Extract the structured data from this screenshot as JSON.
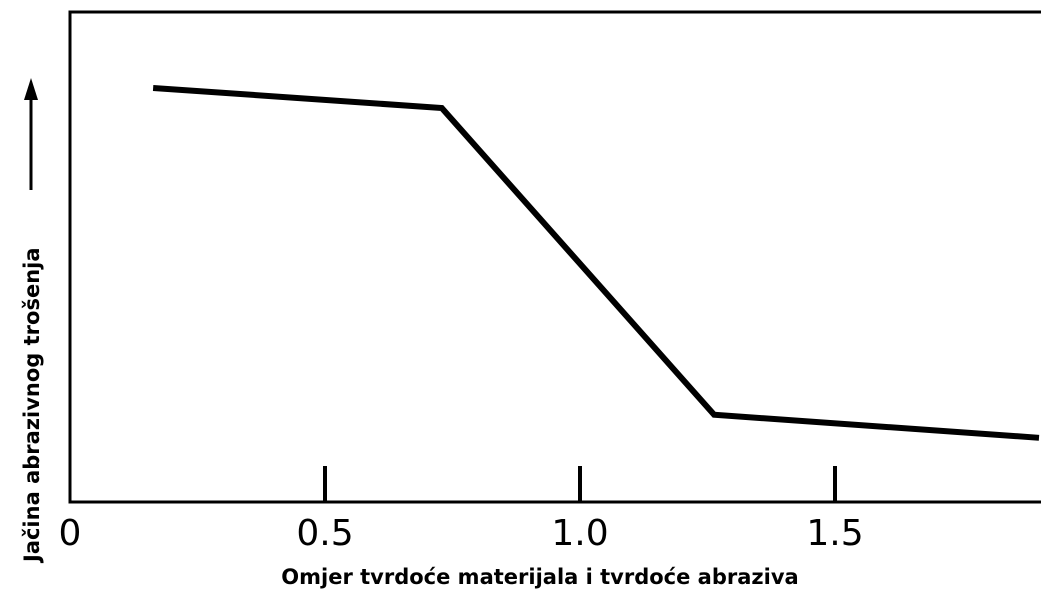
{
  "chart_data": {
    "type": "line",
    "x_label": "Omjer tvrdoće materijala i tvrdoće abraziva",
    "y_label": "Jačina abrazivnog trošenja",
    "x": [
      0.163,
      0.729,
      1.263,
      1.9
    ],
    "values": [
      84.5,
      80.4,
      17.8,
      13.1
    ],
    "color": "#000000",
    "xlim": [
      0,
      1.9
    ],
    "ylim": [
      0,
      100
    ],
    "xticks": [
      0,
      0.5,
      {
        "value": 1,
        "label": "1.0"
      },
      1.5
    ]
  }
}
